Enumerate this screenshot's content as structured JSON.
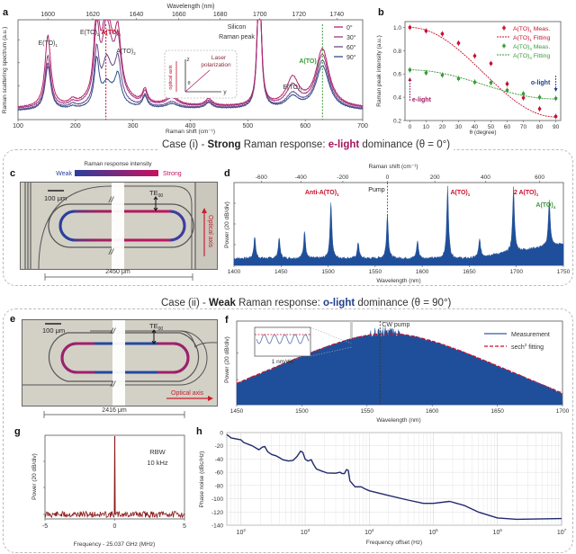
{
  "panels": {
    "a": "a",
    "b": "b",
    "c": "c",
    "d": "d",
    "e": "e",
    "f": "f",
    "g": "g",
    "h": "h"
  },
  "case1": {
    "prefix": "Case (i) - ",
    "strength": "Strong",
    "middle": " Raman response: ",
    "light": "e-light",
    "suffix": " dominance (θ = 0°)"
  },
  "case2": {
    "prefix": "Case (ii) - ",
    "strength": "Weak",
    "middle": " Raman response: ",
    "light": "o-light",
    "suffix": " dominance (θ = 90°)"
  },
  "colors": {
    "deg0": "#b5246e",
    "deg30": "#9a3a7e",
    "deg60": "#6b4a8a",
    "deg90": "#2d4f8f",
    "red": "#c8102e",
    "green": "#3a9a3a",
    "blue_fill": "#1f4f9a",
    "navy": "#1f2a6e",
    "dark_red": "#8b1a1a",
    "elight": "#a3155e",
    "olight": "#1f3f8f"
  },
  "chart_data": [
    {
      "id": "a",
      "type": "line",
      "xlabel": "Raman shift (cm⁻¹)",
      "x2label": "Wavelength (nm)",
      "ylabel": "Raman scattering spectrum (a.u.)",
      "xlim": [
        100,
        700
      ],
      "x_ticks": [
        100,
        200,
        300,
        400,
        500,
        600,
        700
      ],
      "x2_ticks": [
        1600,
        1620,
        1640,
        1660,
        1680,
        1700,
        1720,
        1740
      ],
      "x2_tick_positions_cm": [
        152,
        230,
        306,
        380,
        452,
        521,
        589,
        655
      ],
      "legend": [
        "0°",
        "30°",
        "60°",
        "90°"
      ],
      "annotations": [
        {
          "text": "E(TO)",
          "sub": "1",
          "x": 152
        },
        {
          "text": "E(TO)",
          "sub": "2",
          "x": 228
        },
        {
          "text": "A(TO)",
          "sub": "1",
          "x": 255,
          "color": "red"
        },
        {
          "text": "A(TO)",
          "sub": "2",
          "x": 290
        },
        {
          "text": "Silicon",
          "x": 540
        },
        {
          "text": "Raman peak",
          "x": 540
        },
        {
          "text": "E(TO)",
          "sub": "7",
          "x": 580
        },
        {
          "text": "A(TO)",
          "sub": "4",
          "x": 630,
          "color": "green"
        }
      ],
      "vlines": [
        {
          "x": 253,
          "color": "red"
        },
        {
          "x": 630,
          "color": "green"
        }
      ],
      "inset": {
        "z": "z",
        "y": "y",
        "theta": "θ",
        "axis": "optical axis",
        "laser1": "Laser",
        "laser2": "polarization"
      },
      "peaks": [
        {
          "x": 152,
          "w": 6,
          "h": [
            0.62,
            0.45,
            0.4,
            0.38
          ]
        },
        {
          "x": 195,
          "w": 6,
          "h": [
            0.04,
            0.03,
            0.03,
            0.02
          ]
        },
        {
          "x": 237,
          "w": 5,
          "h": [
            0.78,
            0.62,
            0.45,
            0.4
          ]
        },
        {
          "x": 254,
          "w": 9,
          "h": [
            0.62,
            0.55,
            0.3,
            0.14
          ]
        },
        {
          "x": 274,
          "w": 6,
          "h": [
            0.42,
            0.38,
            0.3,
            0.22
          ]
        },
        {
          "x": 265,
          "w": 18,
          "h": [
            0.25,
            0.22,
            0.15,
            0.1
          ]
        },
        {
          "x": 321,
          "w": 5,
          "h": [
            0.12,
            0.11,
            0.1,
            0.1
          ]
        },
        {
          "x": 368,
          "w": 12,
          "h": [
            0.08,
            0.07,
            0.05,
            0.04
          ]
        },
        {
          "x": 432,
          "w": 7,
          "h": [
            0.06,
            0.05,
            0.05,
            0.05
          ]
        },
        {
          "x": 520,
          "w": 3.5,
          "h": [
            1.4,
            1.4,
            1.4,
            1.4
          ]
        },
        {
          "x": 578,
          "w": 13,
          "h": [
            0.24,
            0.18,
            0.12,
            0.1
          ]
        },
        {
          "x": 630,
          "w": 14,
          "h": [
            0.5,
            0.46,
            0.42,
            0.38
          ]
        }
      ],
      "baseline": [
        0.05,
        0.045,
        0.035,
        0.03
      ]
    },
    {
      "id": "b",
      "type": "scatter",
      "xlabel": "θ (degree)",
      "ylabel": "Raman peak intensity (a.u.)",
      "xlim": [
        -3,
        93
      ],
      "ylim": [
        0.2,
        1.05
      ],
      "x_ticks": [
        0,
        10,
        20,
        30,
        40,
        50,
        60,
        70,
        80,
        90
      ],
      "y_ticks": [
        "0.2",
        "0.4",
        "0.6",
        "0.8",
        "1.0"
      ],
      "x": [
        0,
        10,
        20,
        30,
        40,
        50,
        60,
        70,
        80,
        90
      ],
      "series": [
        {
          "name": "A(TO)1 Meas.",
          "label": "A(TO)",
          "sub": "1",
          "suffix": " Meas.",
          "color": "red",
          "values": [
            1.0,
            0.97,
            0.945,
            0.865,
            0.755,
            0.69,
            0.515,
            0.395,
            0.3,
            0.235
          ]
        },
        {
          "name": "A(TO)1 Fitting",
          "label": "A(TO)",
          "sub": "1",
          "suffix": " Fitting",
          "color": "red",
          "fit": {
            "a": 0.23,
            "b": 0.77
          }
        },
        {
          "name": "A(TO)4 Meas.",
          "label": "A(TO)",
          "sub": "4",
          "suffix": " Meas.",
          "color": "green",
          "values": [
            0.635,
            0.61,
            0.59,
            0.56,
            0.53,
            0.525,
            0.46,
            0.43,
            0.4,
            0.39
          ]
        },
        {
          "name": "A(TO)4 Fitting",
          "label": "A(TO)",
          "sub": "4",
          "suffix": " Fitting",
          "color": "green",
          "fit": {
            "a": 0.385,
            "b": 0.25
          }
        }
      ],
      "annotations": [
        {
          "text": "e-light",
          "x": 0,
          "color": "elight"
        },
        {
          "text": "o-light",
          "x": 90,
          "color": "olight"
        }
      ]
    },
    {
      "id": "d",
      "type": "area",
      "xlabel": "Wavelength (nm)",
      "x2label": "Raman shift (cm⁻¹)",
      "ylabel": "Power (20 dB/div)",
      "xlim": [
        1400,
        1750
      ],
      "x_ticks": [
        1400,
        1450,
        1500,
        1550,
        1600,
        1650,
        1700,
        1750
      ],
      "x2_ticks": [
        -600,
        -400,
        -200,
        0,
        200,
        400,
        600
      ],
      "pump_nm": 1563,
      "peaks_nm": [
        {
          "x": 1422,
          "h": 0.3
        },
        {
          "x": 1448,
          "h": 0.28
        },
        {
          "x": 1475,
          "h": 0.38
        },
        {
          "x": 1503,
          "h": 0.78,
          "label": "Anti-A(TO)",
          "sub": "1",
          "color": "red"
        },
        {
          "x": 1532,
          "h": 0.22
        },
        {
          "x": 1563,
          "h": 0.6,
          "label": "Pump"
        },
        {
          "x": 1595,
          "h": 0.24
        },
        {
          "x": 1627,
          "h": 0.98,
          "label": "A(TO)",
          "sub": "1",
          "color": "red"
        },
        {
          "x": 1661,
          "h": 0.24
        },
        {
          "x": 1697,
          "h": 0.88,
          "label": "2 A(TO)",
          "sub": "1",
          "color": "red"
        },
        {
          "x": 1735,
          "h": 0.64,
          "label": "A(TO)",
          "sub": "4",
          "color": "green"
        }
      ]
    },
    {
      "id": "f",
      "type": "area",
      "xlabel": "Wavelength (nm)",
      "ylabel": "Power (20 dB/div)",
      "xlim": [
        1450,
        1700
      ],
      "x_ticks": [
        1450,
        1500,
        1550,
        1600,
        1650,
        1700
      ],
      "pump_nm": 1560,
      "pump_label": "CW pump",
      "center_nm": 1566,
      "legend": [
        "Measurement",
        "sech² fitting"
      ],
      "legend_sup": "2",
      "inset_label": "1 nm/div",
      "highlight_nm": 1538
    },
    {
      "id": "g",
      "type": "line",
      "xlabel": "Frequency - 25.037 GHz (MHz)",
      "ylabel": "Power (20 dB/div)",
      "xlim": [
        -5,
        5
      ],
      "x_ticks": [
        -5,
        0,
        5
      ],
      "rbw1": "RBW",
      "rbw2": "10 kHz",
      "peak_x": 0
    },
    {
      "id": "h",
      "type": "line",
      "xlabel": "Frequency offset (Hz)",
      "ylabel": "Phase noise (dBc/Hz)",
      "xscale": "log",
      "xlim": [
        60,
        10000000
      ],
      "ylim": [
        -140,
        0
      ],
      "y_ticks": [
        0,
        -20,
        -40,
        -60,
        -80,
        -100,
        -120,
        -140
      ],
      "x_ticks": [
        "10",
        "10",
        "10",
        "10",
        "10",
        "10"
      ],
      "x_tick_exps": [
        "2",
        "3",
        "4",
        "5",
        "6",
        "7"
      ],
      "points": [
        [
          60,
          -3
        ],
        [
          70,
          -8
        ],
        [
          90,
          -10
        ],
        [
          100,
          -11
        ],
        [
          110,
          -15
        ],
        [
          150,
          -20
        ],
        [
          190,
          -26
        ],
        [
          215,
          -22
        ],
        [
          235,
          -21
        ],
        [
          260,
          -29
        ],
        [
          300,
          -33
        ],
        [
          350,
          -35
        ],
        [
          400,
          -38
        ],
        [
          450,
          -41
        ],
        [
          550,
          -43
        ],
        [
          650,
          -42
        ],
        [
          750,
          -36
        ],
        [
          850,
          -28
        ],
        [
          920,
          -30
        ],
        [
          1000,
          -40
        ],
        [
          1100,
          -43
        ],
        [
          1250,
          -41
        ],
        [
          1350,
          -48
        ],
        [
          1500,
          -55
        ],
        [
          1800,
          -58
        ],
        [
          2200,
          -61
        ],
        [
          3000,
          -61.5
        ],
        [
          3500,
          -60
        ],
        [
          3800,
          -62
        ],
        [
          4100,
          -62
        ],
        [
          4400,
          -56
        ],
        [
          4700,
          -57
        ],
        [
          5000,
          -73
        ],
        [
          6000,
          -82
        ],
        [
          7500,
          -82
        ],
        [
          8500,
          -85
        ],
        [
          10000,
          -88
        ],
        [
          20000,
          -95
        ],
        [
          40000,
          -102
        ],
        [
          70000,
          -107
        ],
        [
          100000,
          -107
        ],
        [
          180000,
          -104
        ],
        [
          300000,
          -110
        ],
        [
          500000,
          -120
        ],
        [
          1000000,
          -129
        ],
        [
          2000000,
          -131
        ],
        [
          10000000,
          -130
        ]
      ]
    }
  ],
  "panel_c": {
    "colorbar_title": "Raman response intensity",
    "weak": "Weak",
    "strong": "Strong",
    "scale": "100 μm",
    "mode": "TE",
    "mode_sub": "00",
    "break": "//",
    "axis_label": "Optical axis",
    "length": "2450 μm"
  },
  "panel_e": {
    "scale": "100 μm",
    "mode": "TE",
    "mode_sub": "00",
    "break": "//",
    "axis_label": "Optical axis",
    "length": "2416 μm"
  }
}
